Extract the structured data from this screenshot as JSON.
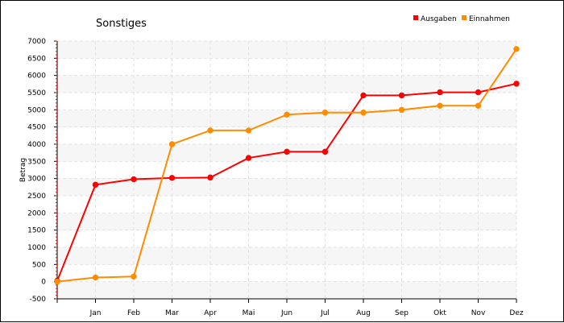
{
  "chart_data": {
    "type": "line",
    "title": "Sonstiges",
    "ylabel": "Betrag",
    "xlabel": "",
    "categories": [
      "",
      "Jan",
      "Feb",
      "Mar",
      "Apr",
      "Mai",
      "Jun",
      "Jul",
      "Aug",
      "Sep",
      "Okt",
      "Nov",
      "Dez"
    ],
    "ylim": [
      -500,
      7000
    ],
    "yticks": [
      -500,
      0,
      500,
      1000,
      1500,
      2000,
      2500,
      3000,
      3500,
      4000,
      4500,
      5000,
      5500,
      6000,
      6500,
      7000
    ],
    "grid": true,
    "legend_position": "top-right",
    "series": [
      {
        "name": "Ausgaben",
        "color": "#ff0000",
        "values": [
          20,
          2820,
          2980,
          3020,
          3030,
          3600,
          3780,
          3780,
          5420,
          5420,
          5510,
          5510,
          5760
        ]
      },
      {
        "name": "Einnahmen",
        "color": "#ff8c00",
        "values": [
          0,
          120,
          150,
          4000,
          4400,
          4400,
          4860,
          4920,
          4920,
          5000,
          5120,
          5120,
          6770
        ]
      }
    ]
  }
}
